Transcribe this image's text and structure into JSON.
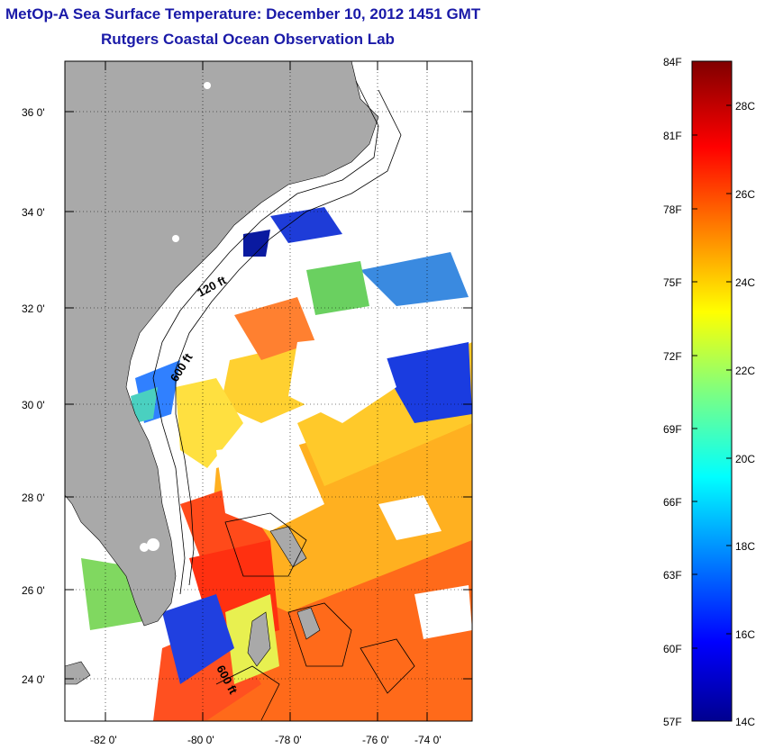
{
  "title": "MetOp-A Sea Surface Temperature:  December 10, 2012 1451 GMT",
  "subtitle": "Rutgers Coastal Ocean Observation Lab",
  "map": {
    "lat_ticks": [
      "36 0'",
      "34 0'",
      "32 0'",
      "30 0'",
      "28 0'",
      "26 0'",
      "24 0'"
    ],
    "lon_ticks": [
      "-82 0'",
      "-80 0'",
      "-78 0'",
      "-76 0'",
      "-74 0'"
    ],
    "contour_labels": [
      "120 ft",
      "600 ft",
      "600 ft"
    ],
    "colors": {
      "land": "#a9a9a9",
      "frame": "#000000"
    }
  },
  "colorbar": {
    "f_labels": [
      "84F",
      "81F",
      "78F",
      "75F",
      "72F",
      "69F",
      "66F",
      "63F",
      "60F",
      "57F"
    ],
    "c_labels": [
      "28C",
      "26C",
      "24C",
      "22C",
      "20C",
      "18C",
      "16C",
      "14C"
    ]
  }
}
